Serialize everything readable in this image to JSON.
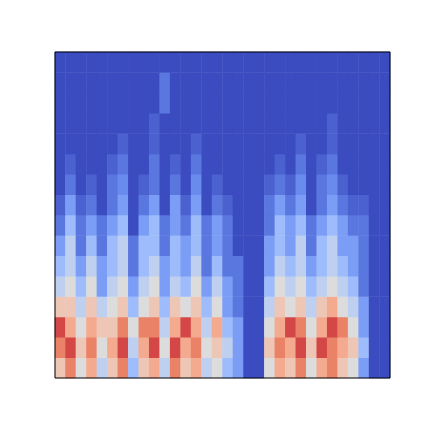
{
  "chart_data": {
    "type": "heatmap",
    "tick_labels": false,
    "value_range": [
      0,
      1
    ],
    "cells": [
      [
        0.6,
        0.8,
        0.5,
        0.7,
        0.4,
        0.6,
        0.8,
        0.3,
        0.6,
        0.7,
        0.4,
        0.8,
        0.6,
        0.7,
        0.4,
        0.5,
        0.3,
        0.2,
        0,
        0,
        0.5,
        0.7,
        0.6,
        0.8,
        0.5,
        0.7,
        0.8,
        0.6,
        0.5,
        0.2,
        0,
        0
      ],
      [
        0.8,
        0.9,
        0.6,
        0.8,
        0.5,
        0.7,
        0.9,
        0.4,
        0.7,
        0.9,
        0.5,
        0.9,
        0.7,
        0.8,
        0.5,
        0.6,
        0.4,
        0.2,
        0,
        0,
        0.6,
        0.8,
        0.7,
        0.9,
        0.6,
        0.9,
        0.8,
        0.7,
        0.6,
        0.3,
        0,
        0
      ],
      [
        0.9,
        0.7,
        0.5,
        0.7,
        0.6,
        0.6,
        0.8,
        0.5,
        0.8,
        0.8,
        0.4,
        0.7,
        0.9,
        0.7,
        0.4,
        0.7,
        0.3,
        0.2,
        0,
        0,
        0.5,
        0.7,
        0.9,
        0.8,
        0.5,
        0.7,
        0.9,
        0.8,
        0.5,
        0.2,
        0,
        0
      ],
      [
        0.6,
        0.6,
        0.4,
        0.6,
        0.4,
        0.5,
        0.6,
        0.3,
        0.5,
        0.6,
        0.3,
        0.6,
        0.5,
        0.6,
        0.3,
        0.5,
        0.2,
        0.1,
        0,
        0,
        0.4,
        0.6,
        0.5,
        0.6,
        0.4,
        0.6,
        0.7,
        0.5,
        0.4,
        0.2,
        0,
        0
      ],
      [
        0.4,
        0.5,
        0.3,
        0.5,
        0.2,
        0.4,
        0.5,
        0.2,
        0.4,
        0.5,
        0.2,
        0.4,
        0.3,
        0.5,
        0.2,
        0.4,
        0.2,
        0.1,
        0,
        0,
        0.3,
        0.5,
        0.4,
        0.5,
        0.3,
        0.4,
        0.5,
        0.4,
        0.3,
        0.1,
        0,
        0
      ],
      [
        0.3,
        0.4,
        0.2,
        0.4,
        0.2,
        0.3,
        0.4,
        0.1,
        0.3,
        0.4,
        0.2,
        0.3,
        0.2,
        0.4,
        0.1,
        0.3,
        0.1,
        0.1,
        0,
        0,
        0.2,
        0.4,
        0.3,
        0.4,
        0.2,
        0.3,
        0.4,
        0.3,
        0.2,
        0.1,
        0,
        0
      ],
      [
        0.2,
        0.4,
        0.1,
        0.3,
        0.1,
        0.3,
        0.4,
        0.1,
        0.3,
        0.3,
        0.1,
        0.3,
        0.2,
        0.3,
        0.1,
        0.2,
        0.1,
        0,
        0,
        0,
        0.2,
        0.3,
        0.2,
        0.4,
        0.1,
        0.3,
        0.4,
        0.2,
        0.2,
        0.1,
        0,
        0
      ],
      [
        0.1,
        0.3,
        0.1,
        0.2,
        0.1,
        0.2,
        0.3,
        0,
        0.2,
        0.3,
        0.1,
        0.2,
        0.1,
        0.3,
        0.1,
        0.2,
        0.1,
        0,
        0,
        0,
        0.1,
        0.3,
        0.2,
        0.3,
        0.1,
        0.2,
        0.3,
        0.2,
        0.1,
        0.1,
        0,
        0
      ],
      [
        0.05,
        0.2,
        0.05,
        0.1,
        0,
        0.1,
        0.2,
        0,
        0.1,
        0.2,
        0,
        0.2,
        0.05,
        0.2,
        0,
        0.1,
        0.05,
        0,
        0,
        0,
        0.1,
        0.2,
        0.1,
        0.2,
        0,
        0.1,
        0.2,
        0.1,
        0.05,
        0.05,
        0,
        0
      ],
      [
        0,
        0.1,
        0,
        0.05,
        0,
        0.1,
        0.15,
        0,
        0.05,
        0.1,
        0,
        0.1,
        0,
        0.15,
        0,
        0.05,
        0,
        0,
        0,
        0,
        0.05,
        0.1,
        0.05,
        0.15,
        0,
        0.1,
        0.15,
        0.05,
        0,
        0,
        0,
        0
      ],
      [
        0,
        0.05,
        0,
        0,
        0,
        0.05,
        0.1,
        0,
        0,
        0.1,
        0,
        0.05,
        0,
        0.1,
        0,
        0,
        0,
        0,
        0,
        0,
        0,
        0.05,
        0,
        0.1,
        0,
        0.05,
        0.1,
        0,
        0,
        0,
        0,
        0
      ],
      [
        0,
        0,
        0,
        0,
        0,
        0,
        0.05,
        0,
        0,
        0.05,
        0,
        0,
        0,
        0.05,
        0,
        0,
        0,
        0,
        0,
        0,
        0,
        0,
        0,
        0.05,
        0,
        0,
        0.05,
        0,
        0,
        0,
        0,
        0
      ],
      [
        0,
        0,
        0,
        0,
        0,
        0,
        0,
        0,
        0,
        0.05,
        0,
        0,
        0,
        0,
        0,
        0,
        0,
        0,
        0,
        0,
        0,
        0,
        0,
        0,
        0,
        0,
        0.05,
        0,
        0,
        0,
        0,
        0
      ],
      [
        0,
        0,
        0,
        0,
        0,
        0,
        0,
        0,
        0,
        0,
        0.1,
        0,
        0,
        0,
        0,
        0,
        0,
        0,
        0,
        0,
        0,
        0,
        0,
        0,
        0,
        0,
        0,
        0,
        0,
        0,
        0,
        0
      ],
      [
        0,
        0,
        0,
        0,
        0,
        0,
        0,
        0,
        0,
        0,
        0.1,
        0,
        0,
        0,
        0,
        0,
        0,
        0,
        0,
        0,
        0,
        0,
        0,
        0,
        0,
        0,
        0,
        0,
        0,
        0,
        0,
        0
      ],
      [
        0,
        0,
        0,
        0,
        0,
        0,
        0,
        0,
        0,
        0,
        0,
        0,
        0,
        0,
        0,
        0,
        0,
        0,
        0,
        0,
        0,
        0,
        0,
        0,
        0,
        0,
        0,
        0,
        0,
        0,
        0,
        0
      ]
    ]
  }
}
